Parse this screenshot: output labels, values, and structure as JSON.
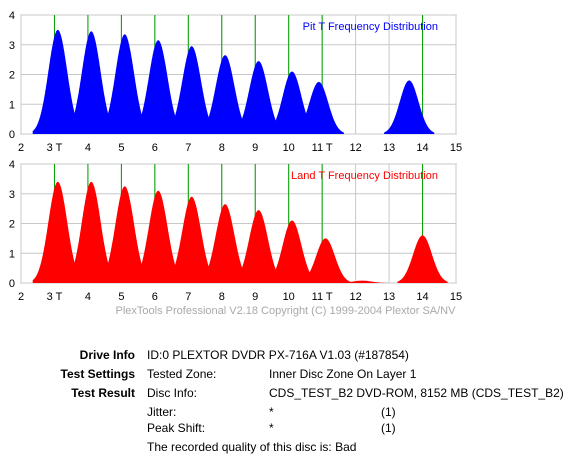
{
  "chart_data": [
    {
      "type": "area",
      "title": "Pit T Frequency Distribution",
      "title_color": "#0000ff",
      "fill_color": "#0000ff",
      "marker_color": "#00a000",
      "grid": true,
      "xlim": [
        2,
        15
      ],
      "ylim": [
        0,
        4
      ],
      "yticks": [
        0,
        1,
        2,
        3,
        4
      ],
      "xticks": [
        {
          "v": 2,
          "label": "2"
        },
        {
          "v": 3,
          "label": "3 T"
        },
        {
          "v": 4,
          "label": "4"
        },
        {
          "v": 5,
          "label": "5"
        },
        {
          "v": 6,
          "label": "6"
        },
        {
          "v": 7,
          "label": "7"
        },
        {
          "v": 8,
          "label": "8"
        },
        {
          "v": 9,
          "label": "9"
        },
        {
          "v": 10,
          "label": "10"
        },
        {
          "v": 11,
          "label": "11 T"
        },
        {
          "v": 12,
          "label": "12"
        },
        {
          "v": 13,
          "label": "13"
        },
        {
          "v": 14,
          "label": "14"
        },
        {
          "v": 15,
          "label": "15"
        }
      ],
      "t_markers": [
        3,
        4,
        5,
        6,
        7,
        8,
        9,
        10,
        11,
        14
      ],
      "peaks": [
        {
          "center": 3.1,
          "height": 3.5
        },
        {
          "center": 4.1,
          "height": 3.45
        },
        {
          "center": 5.1,
          "height": 3.35
        },
        {
          "center": 6.1,
          "height": 3.15
        },
        {
          "center": 7.1,
          "height": 2.95
        },
        {
          "center": 8.1,
          "height": 2.65
        },
        {
          "center": 9.1,
          "height": 2.45
        },
        {
          "center": 10.1,
          "height": 2.1
        },
        {
          "center": 10.9,
          "height": 1.75
        },
        {
          "center": 13.6,
          "height": 1.8
        }
      ]
    },
    {
      "type": "area",
      "title": "Land T Frequency Distribution",
      "title_color": "#ff0000",
      "fill_color": "#ff0000",
      "marker_color": "#00a000",
      "grid": true,
      "xlim": [
        2,
        15
      ],
      "ylim": [
        0,
        4
      ],
      "yticks": [
        0,
        1,
        2,
        3,
        4
      ],
      "xticks": [
        {
          "v": 2,
          "label": "2"
        },
        {
          "v": 3,
          "label": "3 T"
        },
        {
          "v": 4,
          "label": "4"
        },
        {
          "v": 5,
          "label": "5"
        },
        {
          "v": 6,
          "label": "6"
        },
        {
          "v": 7,
          "label": "7"
        },
        {
          "v": 8,
          "label": "8"
        },
        {
          "v": 9,
          "label": "9"
        },
        {
          "v": 10,
          "label": "10"
        },
        {
          "v": 11,
          "label": "11 T"
        },
        {
          "v": 12,
          "label": "12"
        },
        {
          "v": 13,
          "label": "13"
        },
        {
          "v": 14,
          "label": "14"
        },
        {
          "v": 15,
          "label": "15"
        }
      ],
      "t_markers": [
        3,
        4,
        5,
        6,
        7,
        8,
        9,
        10,
        11,
        14
      ],
      "peaks": [
        {
          "center": 3.1,
          "height": 3.4
        },
        {
          "center": 4.1,
          "height": 3.4
        },
        {
          "center": 5.1,
          "height": 3.25
        },
        {
          "center": 6.1,
          "height": 3.1
        },
        {
          "center": 7.1,
          "height": 2.9
        },
        {
          "center": 8.1,
          "height": 2.65
        },
        {
          "center": 9.1,
          "height": 2.45
        },
        {
          "center": 10.1,
          "height": 2.1
        },
        {
          "center": 11.1,
          "height": 1.5
        },
        {
          "center": 12.2,
          "height": 0.08
        },
        {
          "center": 14.0,
          "height": 1.6
        }
      ]
    }
  ],
  "copyright": "PlexTools Professional V2.18 Copyright (C) 1999-2004 Plextor SA/NV",
  "info": {
    "drive_label": "Drive Info",
    "drive_value": "ID:0 PLEXTOR DVDR PX-716A V1.03 (#187854)",
    "settings_label": "Test Settings",
    "tested_zone_label": "Tested Zone:",
    "tested_zone_value": "Inner Disc Zone On Layer 1",
    "result_label": "Test Result",
    "disc_info_label": "Disc Info:",
    "disc_info_value": "CDS_TEST_B2 DVD-ROM, 8152 MB (CDS_TEST_B2)",
    "jitter_label": "Jitter:",
    "jitter_value": "*",
    "jitter_note": "(1)",
    "peak_shift_label": "Peak Shift:",
    "peak_shift_value": "*",
    "peak_shift_note": "(1)",
    "quality_text": "The recorded quality of this disc is: Bad"
  }
}
